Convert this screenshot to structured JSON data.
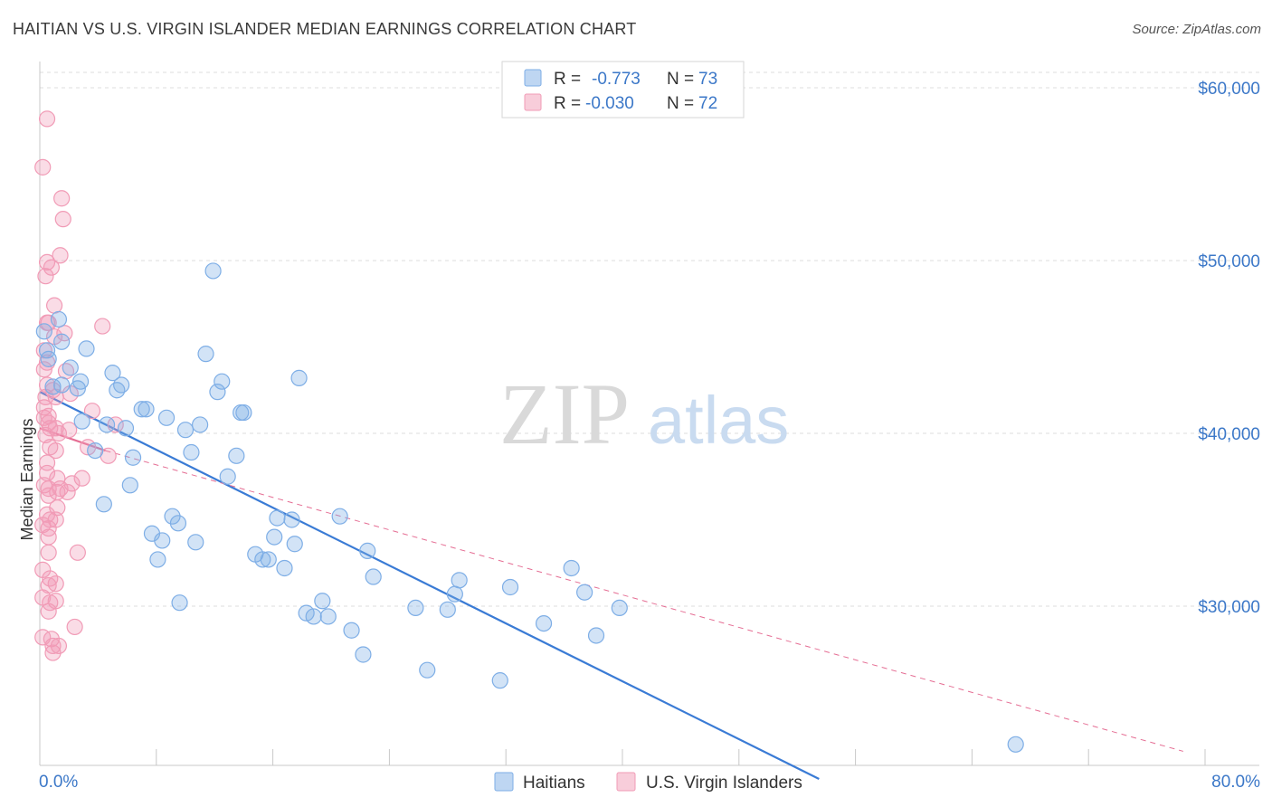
{
  "title": "HAITIAN VS U.S. VIRGIN ISLANDER MEDIAN EARNINGS CORRELATION CHART",
  "source": "Source: ZipAtlas.com",
  "watermark": {
    "zip": "ZIP",
    "atlas": "atlas"
  },
  "legend_top": [
    {
      "r_label": "R =",
      "r_value": "-0.773",
      "n_label": "N =",
      "n_value": "73",
      "color": "#7eaee6"
    },
    {
      "r_label": "R =",
      "r_value": "-0.030",
      "n_label": "N =",
      "n_value": "72",
      "color": "#f19bb6"
    }
  ],
  "colors": {
    "blue": "#7eaee6",
    "blue_line": "#3a7bd5",
    "pink": "#f19bb6",
    "pink_line": "#e56e94",
    "tick_text": "#3c78c8"
  },
  "chart_data": {
    "type": "scatter",
    "xlabel": "",
    "ylabel": "Median Earnings",
    "xlim": [
      0,
      80
    ],
    "ylim": [
      20000,
      62000
    ],
    "x_tick_labels": [
      "0.0%",
      "80.0%"
    ],
    "y_ticks": [
      30000,
      40000,
      50000,
      60000
    ],
    "y_tick_labels": [
      "$30,000",
      "$40,000",
      "$50,000",
      "$60,000"
    ],
    "series": [
      {
        "name": "Haitians",
        "points": [
          [
            0.3,
            45900
          ],
          [
            0.5,
            44800
          ],
          [
            0.6,
            44300
          ],
          [
            1.3,
            46600
          ],
          [
            1.5,
            45300
          ],
          [
            1.5,
            42800
          ],
          [
            2.1,
            43800
          ],
          [
            2.6,
            42600
          ],
          [
            2.8,
            43000
          ],
          [
            2.9,
            40700
          ],
          [
            3.2,
            44900
          ],
          [
            3.8,
            39000
          ],
          [
            4.4,
            35900
          ],
          [
            4.6,
            40500
          ],
          [
            5.0,
            43500
          ],
          [
            5.3,
            42500
          ],
          [
            5.6,
            42800
          ],
          [
            5.9,
            40300
          ],
          [
            6.2,
            37000
          ],
          [
            6.4,
            38600
          ],
          [
            7.0,
            41400
          ],
          [
            7.3,
            41400
          ],
          [
            7.7,
            34200
          ],
          [
            8.1,
            32700
          ],
          [
            8.4,
            33800
          ],
          [
            8.7,
            40900
          ],
          [
            9.1,
            35200
          ],
          [
            9.5,
            34800
          ],
          [
            9.6,
            30200
          ],
          [
            10.0,
            40200
          ],
          [
            10.4,
            38900
          ],
          [
            10.7,
            33700
          ],
          [
            11.0,
            40500
          ],
          [
            11.4,
            44600
          ],
          [
            11.9,
            49400
          ],
          [
            12.2,
            42400
          ],
          [
            12.5,
            43000
          ],
          [
            12.9,
            37500
          ],
          [
            13.5,
            38700
          ],
          [
            13.8,
            41200
          ],
          [
            14.0,
            41200
          ],
          [
            14.8,
            33000
          ],
          [
            15.3,
            32700
          ],
          [
            15.7,
            32700
          ],
          [
            16.1,
            34000
          ],
          [
            16.3,
            35100
          ],
          [
            16.8,
            32200
          ],
          [
            17.3,
            35000
          ],
          [
            17.5,
            33600
          ],
          [
            17.8,
            43200
          ],
          [
            18.3,
            29600
          ],
          [
            18.8,
            29400
          ],
          [
            19.4,
            30300
          ],
          [
            19.8,
            29400
          ],
          [
            20.6,
            35200
          ],
          [
            21.4,
            28600
          ],
          [
            22.2,
            27200
          ],
          [
            22.5,
            33200
          ],
          [
            22.9,
            31700
          ],
          [
            25.8,
            29900
          ],
          [
            26.6,
            26300
          ],
          [
            28.0,
            29800
          ],
          [
            28.5,
            30700
          ],
          [
            28.8,
            31500
          ],
          [
            31.6,
            25700
          ],
          [
            32.3,
            31100
          ],
          [
            34.6,
            29000
          ],
          [
            36.5,
            32200
          ],
          [
            37.4,
            30800
          ],
          [
            38.2,
            28300
          ],
          [
            39.8,
            29900
          ],
          [
            67.0,
            22000
          ],
          [
            0.9,
            42700
          ]
        ]
      },
      {
        "name": "U.S. Virgin Islanders",
        "points": [
          [
            0.2,
            55400
          ],
          [
            0.3,
            41500
          ],
          [
            0.4,
            39900
          ],
          [
            0.5,
            58200
          ],
          [
            0.5,
            49900
          ],
          [
            0.4,
            49100
          ],
          [
            0.6,
            46400
          ],
          [
            0.5,
            46400
          ],
          [
            0.5,
            44100
          ],
          [
            0.5,
            42800
          ],
          [
            0.4,
            42100
          ],
          [
            0.6,
            41000
          ],
          [
            0.6,
            40600
          ],
          [
            0.7,
            40300
          ],
          [
            0.7,
            39200
          ],
          [
            0.5,
            38300
          ],
          [
            0.5,
            37700
          ],
          [
            0.6,
            36800
          ],
          [
            0.6,
            36400
          ],
          [
            0.5,
            35300
          ],
          [
            0.7,
            35000
          ],
          [
            0.6,
            34500
          ],
          [
            0.6,
            34000
          ],
          [
            0.6,
            33100
          ],
          [
            0.7,
            31600
          ],
          [
            0.6,
            31200
          ],
          [
            0.7,
            30200
          ],
          [
            0.6,
            29700
          ],
          [
            0.8,
            28100
          ],
          [
            0.9,
            27700
          ],
          [
            0.9,
            27300
          ],
          [
            1.0,
            47400
          ],
          [
            1.0,
            45600
          ],
          [
            1.1,
            42100
          ],
          [
            1.1,
            40300
          ],
          [
            1.1,
            39000
          ],
          [
            1.2,
            37400
          ],
          [
            1.2,
            36600
          ],
          [
            1.2,
            35700
          ],
          [
            1.1,
            35000
          ],
          [
            1.1,
            31300
          ],
          [
            1.1,
            30300
          ],
          [
            1.3,
            27700
          ],
          [
            1.4,
            50300
          ],
          [
            1.5,
            53600
          ],
          [
            1.6,
            52400
          ],
          [
            1.7,
            45800
          ],
          [
            1.8,
            43600
          ],
          [
            1.3,
            40000
          ],
          [
            1.4,
            36800
          ],
          [
            1.9,
            36600
          ],
          [
            2.0,
            40200
          ],
          [
            2.1,
            42300
          ],
          [
            2.2,
            37100
          ],
          [
            2.4,
            28800
          ],
          [
            2.6,
            33100
          ],
          [
            2.9,
            37400
          ],
          [
            3.3,
            39200
          ],
          [
            3.6,
            41300
          ],
          [
            4.3,
            46200
          ],
          [
            4.7,
            38700
          ],
          [
            5.2,
            40500
          ],
          [
            0.3,
            44800
          ],
          [
            0.3,
            43700
          ],
          [
            0.3,
            40900
          ],
          [
            0.3,
            37000
          ],
          [
            0.2,
            34700
          ],
          [
            0.2,
            32100
          ],
          [
            0.2,
            30500
          ],
          [
            0.2,
            28200
          ],
          [
            0.8,
            49600
          ],
          [
            0.9,
            42500
          ]
        ]
      }
    ],
    "trend_lines": [
      {
        "series": "Haitians",
        "x": [
          0,
          53.5
        ],
        "y": [
          42400,
          20000
        ]
      },
      {
        "series": "U.S. Virgin Islanders solid",
        "x": [
          0,
          4.5
        ],
        "y": [
          40300,
          39000
        ]
      },
      {
        "series": "U.S. Virgin Islanders dashed",
        "x": [
          4.5,
          78.5
        ],
        "y": [
          39000,
          21600
        ]
      }
    ]
  },
  "legend_bottom": [
    {
      "label": "Haitians",
      "color": "#7eaee6"
    },
    {
      "label": "U.S. Virgin Islanders",
      "color": "#f19bb6"
    }
  ]
}
